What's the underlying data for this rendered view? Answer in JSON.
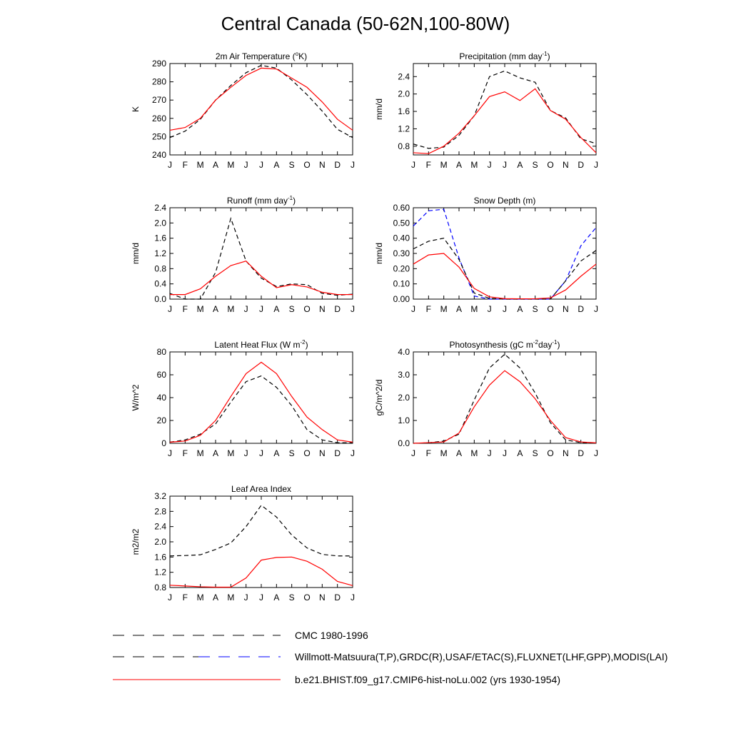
{
  "page": {
    "title": "Central Canada (50-62N,100-80W)"
  },
  "colors": {
    "obs": "#000000",
    "obs_snow": "#0000ff",
    "model": "#ff0000"
  },
  "legend": [
    {
      "label": "CMC 1980-1996",
      "style": "dashed-black"
    },
    {
      "label": "Willmott-Matsuura(T,P),GRDC(R),USAF/ETAC(S),FLUXNET(LHF,GPP),MODIS(LAI)",
      "style": "dashed-black-blue"
    },
    {
      "label": "b.e21.BHIST.f09_g17.CMIP6-hist-noLu.002 (yrs 1930-1954)",
      "style": "solid-red"
    }
  ],
  "chart_data": [
    {
      "id": "temp",
      "type": "line",
      "title": "2m Air Temperature (",
      "title_sup": "o",
      "title_after": "K)",
      "ylabel": "K",
      "categories": [
        "J",
        "F",
        "M",
        "A",
        "M",
        "J",
        "J",
        "A",
        "S",
        "O",
        "N",
        "D",
        "J"
      ],
      "ylim": [
        240,
        290
      ],
      "yticks": [
        240,
        250,
        260,
        270,
        280,
        290
      ],
      "ytick_labels": [
        "240",
        "250",
        "260",
        "270",
        "280",
        "290"
      ],
      "series": [
        {
          "values": [
            249.5,
            253,
            259.5,
            270,
            278,
            285,
            289,
            287.5,
            281,
            273,
            264,
            254,
            249.5
          ],
          "style": "dashed",
          "color": "#000000"
        },
        {
          "values": [
            253.5,
            255,
            260,
            270,
            277,
            283.5,
            287.5,
            287,
            282,
            277,
            269,
            259.5,
            253.5
          ],
          "style": "solid",
          "color": "#ff0000"
        }
      ]
    },
    {
      "id": "precip",
      "type": "line",
      "title": "Precipitation (mm day",
      "title_sup": "-1",
      "title_after": ")",
      "ylabel": "mm/d",
      "categories": [
        "J",
        "F",
        "M",
        "A",
        "M",
        "J",
        "J",
        "A",
        "S",
        "O",
        "N",
        "D",
        "J"
      ],
      "ylim": [
        0.6,
        2.7
      ],
      "yticks": [
        0.8,
        1.2,
        1.6,
        2.0,
        2.4
      ],
      "ytick_labels": [
        "0.8",
        "1.2",
        "1.6",
        "2.0",
        "2.4"
      ],
      "series": [
        {
          "values": [
            0.85,
            0.75,
            0.78,
            1.05,
            1.5,
            2.4,
            2.53,
            2.37,
            2.27,
            1.62,
            1.45,
            0.97,
            0.86
          ],
          "style": "dashed",
          "color": "#000000"
        },
        {
          "values": [
            0.65,
            0.63,
            0.8,
            1.1,
            1.5,
            1.94,
            2.05,
            1.85,
            2.12,
            1.62,
            1.42,
            1.0,
            0.65
          ],
          "style": "solid",
          "color": "#ff0000"
        }
      ]
    },
    {
      "id": "runoff",
      "type": "line",
      "title": "Runoff (mm day",
      "title_sup": "-1",
      "title_after": ")",
      "ylabel": "mm/d",
      "categories": [
        "J",
        "F",
        "M",
        "A",
        "M",
        "J",
        "J",
        "A",
        "S",
        "O",
        "N",
        "D",
        "J"
      ],
      "ylim": [
        0,
        2.4
      ],
      "yticks": [
        0,
        0.4,
        0.8,
        1.2,
        1.6,
        2.0,
        2.4
      ],
      "ytick_labels": [
        "0.0",
        "0.4",
        "0.8",
        "1.2",
        "1.6",
        "2.0",
        "2.4"
      ],
      "series": [
        {
          "values": [
            0.15,
            0.0,
            0.0,
            0.7,
            2.12,
            1.0,
            0.55,
            0.33,
            0.4,
            0.38,
            0.15,
            0.1,
            0.13
          ],
          "style": "dashed",
          "color": "#000000"
        },
        {
          "values": [
            0.12,
            0.12,
            0.27,
            0.6,
            0.88,
            1.0,
            0.6,
            0.3,
            0.38,
            0.32,
            0.18,
            0.12,
            0.12
          ],
          "style": "solid",
          "color": "#ff0000"
        }
      ]
    },
    {
      "id": "snow",
      "type": "line",
      "title": "Snow Depth (m)",
      "title_sup": "",
      "title_after": "",
      "ylabel": "mm/d",
      "categories": [
        "J",
        "F",
        "M",
        "A",
        "M",
        "J",
        "J",
        "A",
        "S",
        "O",
        "N",
        "D",
        "J"
      ],
      "ylim": [
        0,
        0.6
      ],
      "yticks": [
        0,
        0.1,
        0.2,
        0.3,
        0.4,
        0.5,
        0.6
      ],
      "ytick_labels": [
        "0.00",
        "0.10",
        "0.20",
        "0.30",
        "0.40",
        "0.50",
        "0.60"
      ],
      "series": [
        {
          "values": [
            0.48,
            0.58,
            0.59,
            0.27,
            0.02,
            0.0,
            0.0,
            0.0,
            0.0,
            0.0,
            0.12,
            0.35,
            0.47
          ],
          "style": "dashed",
          "color": "#0000ff"
        },
        {
          "values": [
            0.33,
            0.38,
            0.4,
            0.26,
            0.04,
            0.005,
            0.0,
            0.0,
            0.0,
            0.0,
            0.12,
            0.25,
            0.32
          ],
          "style": "dashed",
          "color": "#000000"
        },
        {
          "values": [
            0.23,
            0.29,
            0.3,
            0.21,
            0.07,
            0.015,
            0.003,
            0.002,
            0.002,
            0.008,
            0.06,
            0.15,
            0.23
          ],
          "style": "solid",
          "color": "#ff0000"
        }
      ]
    },
    {
      "id": "lhf",
      "type": "line",
      "title": "Latent Heat Flux (W m",
      "title_sup": "-2",
      "title_after": ")",
      "ylabel": "W/m^2",
      "categories": [
        "J",
        "F",
        "M",
        "A",
        "M",
        "J",
        "J",
        "A",
        "S",
        "O",
        "N",
        "D",
        "J"
      ],
      "ylim": [
        0,
        80
      ],
      "yticks": [
        0,
        20,
        40,
        60,
        80
      ],
      "ytick_labels": [
        "0",
        "20",
        "40",
        "60",
        "80"
      ],
      "series": [
        {
          "values": [
            1,
            3,
            8,
            17,
            36,
            54,
            59,
            49,
            33,
            12,
            3,
            0.5,
            0.5
          ],
          "style": "dashed",
          "color": "#000000"
        },
        {
          "values": [
            1,
            2,
            7,
            20,
            41,
            61,
            71,
            61,
            41,
            23,
            12,
            3,
            1
          ],
          "style": "solid",
          "color": "#ff0000"
        }
      ]
    },
    {
      "id": "gpp",
      "type": "line",
      "title": "Photosynthesis (gC m",
      "title_sup": "-2",
      "title_after": "day",
      "title_sup2": "-1",
      "title_after2": ")",
      "ylabel": "gC/m^2/d",
      "categories": [
        "J",
        "F",
        "M",
        "A",
        "M",
        "J",
        "J",
        "A",
        "S",
        "O",
        "N",
        "D",
        "J"
      ],
      "ylim": [
        0,
        4
      ],
      "yticks": [
        0,
        1,
        2,
        3,
        4
      ],
      "ytick_labels": [
        "0.0",
        "1.0",
        "2.0",
        "3.0",
        "4.0"
      ],
      "series": [
        {
          "values": [
            0,
            0.02,
            0.1,
            0.4,
            1.9,
            3.3,
            3.9,
            3.3,
            2.2,
            0.9,
            0.15,
            0.03,
            0.0
          ],
          "style": "dashed",
          "color": "#000000"
        },
        {
          "values": [
            0,
            0.03,
            0.06,
            0.45,
            1.6,
            2.55,
            3.18,
            2.7,
            1.95,
            1.0,
            0.25,
            0.06,
            0.02
          ],
          "style": "solid",
          "color": "#ff0000"
        }
      ]
    },
    {
      "id": "lai",
      "type": "line",
      "title": "Leaf Area Index",
      "title_sup": "",
      "title_after": "",
      "ylabel": "m2/m2",
      "categories": [
        "J",
        "F",
        "M",
        "A",
        "M",
        "J",
        "J",
        "A",
        "S",
        "O",
        "N",
        "D",
        "J"
      ],
      "ylim": [
        0.8,
        3.2
      ],
      "yticks": [
        0.8,
        1.2,
        1.6,
        2.0,
        2.4,
        2.8,
        3.2
      ],
      "ytick_labels": [
        "0.8",
        "1.2",
        "1.6",
        "2.0",
        "2.4",
        "2.8",
        "3.2"
      ],
      "series": [
        {
          "values": [
            1.63,
            1.64,
            1.66,
            1.8,
            1.97,
            2.4,
            2.96,
            2.65,
            2.18,
            1.84,
            1.67,
            1.63,
            1.63
          ],
          "style": "dashed",
          "color": "#000000"
        },
        {
          "values": [
            0.86,
            0.84,
            0.82,
            0.81,
            0.81,
            1.05,
            1.52,
            1.59,
            1.6,
            1.49,
            1.28,
            0.96,
            0.85
          ],
          "style": "solid",
          "color": "#ff0000"
        }
      ]
    }
  ]
}
